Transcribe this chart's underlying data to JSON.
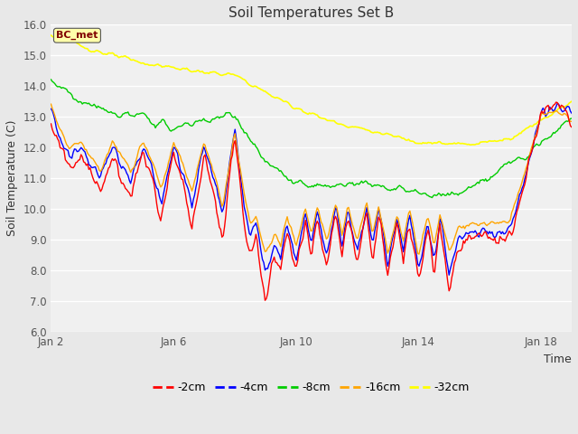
{
  "title": "Soil Temperatures Set B",
  "xlabel": "Time",
  "ylabel": "Soil Temperature (C)",
  "ylim": [
    6.0,
    16.0
  ],
  "yticks": [
    6.0,
    7.0,
    8.0,
    9.0,
    10.0,
    11.0,
    12.0,
    13.0,
    14.0,
    15.0,
    16.0
  ],
  "xtick_labels": [
    "Jan 2",
    "Jan 6",
    "Jan 10",
    "Jan 14",
    "Jan 18"
  ],
  "xtick_positions": [
    0,
    4,
    8,
    12,
    16
  ],
  "annotation_text": "BC_met",
  "annotation_color": "#800000",
  "figure_bg_color": "#e8e8e8",
  "plot_bg_color": "#f0f0f0",
  "grid_color": "#ffffff",
  "colors": {
    "-2cm": "#ff0000",
    "-4cm": "#0000ff",
    "-8cm": "#00cc00",
    "-16cm": "#ffa500",
    "-32cm": "#ffff00"
  },
  "legend_labels": [
    "-2cm",
    "-4cm",
    "-8cm",
    "-16cm",
    "-32cm"
  ],
  "n_points": 400
}
